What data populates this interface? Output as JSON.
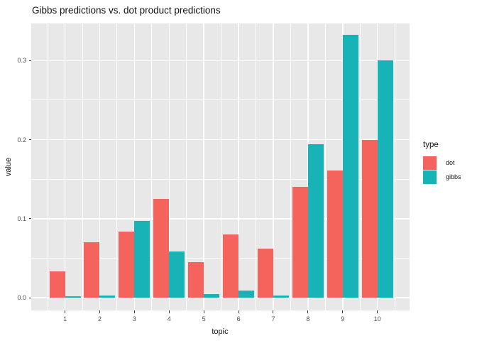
{
  "title": "Gibbs predictions vs. dot product predictions",
  "colors": {
    "dot": "#F4645C",
    "gibbs": "#17B3B6",
    "panel_bg": "#E8E8E8",
    "grid": "#FFFFFF",
    "tick_text": "#4D4D4D",
    "title_text": "#111111"
  },
  "legend": {
    "title": "type",
    "items": [
      {
        "label": "dot",
        "color": "#F4645C"
      },
      {
        "label": "gibbs",
        "color": "#17B3B6"
      }
    ]
  },
  "chart_data": {
    "type": "bar",
    "title": "Gibbs predictions vs. dot product predictions",
    "xlabel": "topic",
    "ylabel": "value",
    "categories": [
      "1",
      "2",
      "3",
      "4",
      "5",
      "6",
      "7",
      "8",
      "9",
      "10"
    ],
    "series": [
      {
        "name": "dot",
        "color": "#F4645C",
        "values": [
          0.033,
          0.07,
          0.084,
          0.125,
          0.045,
          0.08,
          0.062,
          0.14,
          0.161,
          0.2
        ]
      },
      {
        "name": "gibbs",
        "color": "#17B3B6",
        "values": [
          0.002,
          0.003,
          0.097,
          0.059,
          0.005,
          0.009,
          0.003,
          0.194,
          0.333,
          0.3
        ]
      }
    ],
    "y_ticks": [
      0.0,
      0.1,
      0.2,
      0.3
    ],
    "y_tick_labels": [
      "0.0",
      "0.1",
      "0.2",
      "0.3"
    ],
    "y_minor_ticks": [
      0.05,
      0.15,
      0.25
    ],
    "ylim": [
      -0.016,
      0.347
    ],
    "grid": true,
    "legend_position": "right",
    "legend_title": "type"
  }
}
